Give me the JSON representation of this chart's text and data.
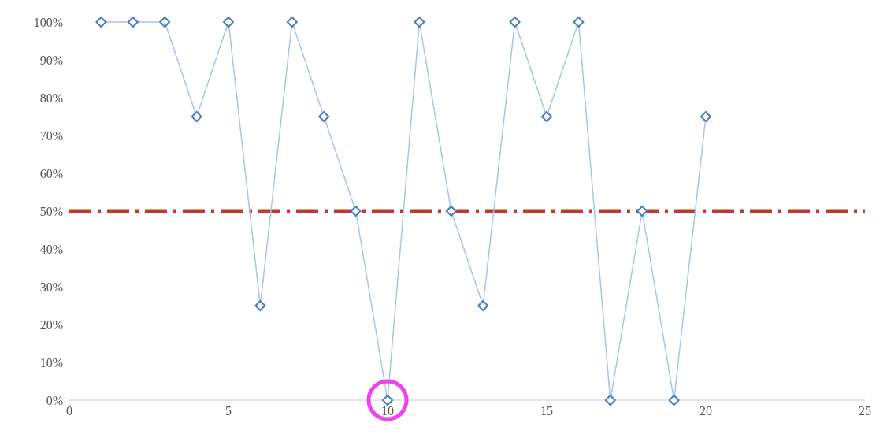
{
  "chart_data": {
    "type": "line",
    "x": [
      1,
      2,
      3,
      4,
      5,
      6,
      7,
      8,
      9,
      10,
      11,
      12,
      13,
      14,
      15,
      16,
      17,
      18,
      19,
      20
    ],
    "series": [
      {
        "color": "#a9c4e6",
        "values": [
          100,
          100,
          100,
          75,
          100,
          25,
          100,
          75,
          50,
          0,
          100,
          50,
          25,
          100,
          75,
          100,
          0,
          50,
          0,
          75
        ]
      }
    ],
    "marker": "diamond",
    "line_style": "solid",
    "grid": false,
    "xlim": [
      0,
      25
    ],
    "xticks": [
      0,
      5,
      10,
      15,
      20,
      25
    ],
    "ylim": [
      0,
      100
    ],
    "yticks": [
      {
        "value": 0,
        "label": "0%"
      },
      {
        "value": 10,
        "label": "10%"
      },
      {
        "value": 20,
        "label": "20%"
      },
      {
        "value": 30,
        "label": "30%"
      },
      {
        "value": 40,
        "label": "40%"
      },
      {
        "value": 50,
        "label": "50%"
      },
      {
        "value": 60,
        "label": "60%"
      },
      {
        "value": 70,
        "label": "70%"
      },
      {
        "value": 80,
        "label": "80%"
      },
      {
        "value": 90,
        "label": "90%"
      },
      {
        "value": 100,
        "label": "100%"
      }
    ],
    "ref_lines": [
      {
        "axis": "y",
        "value": 50,
        "color": "#c0392b",
        "line_style": "dashdot"
      }
    ]
  }
}
